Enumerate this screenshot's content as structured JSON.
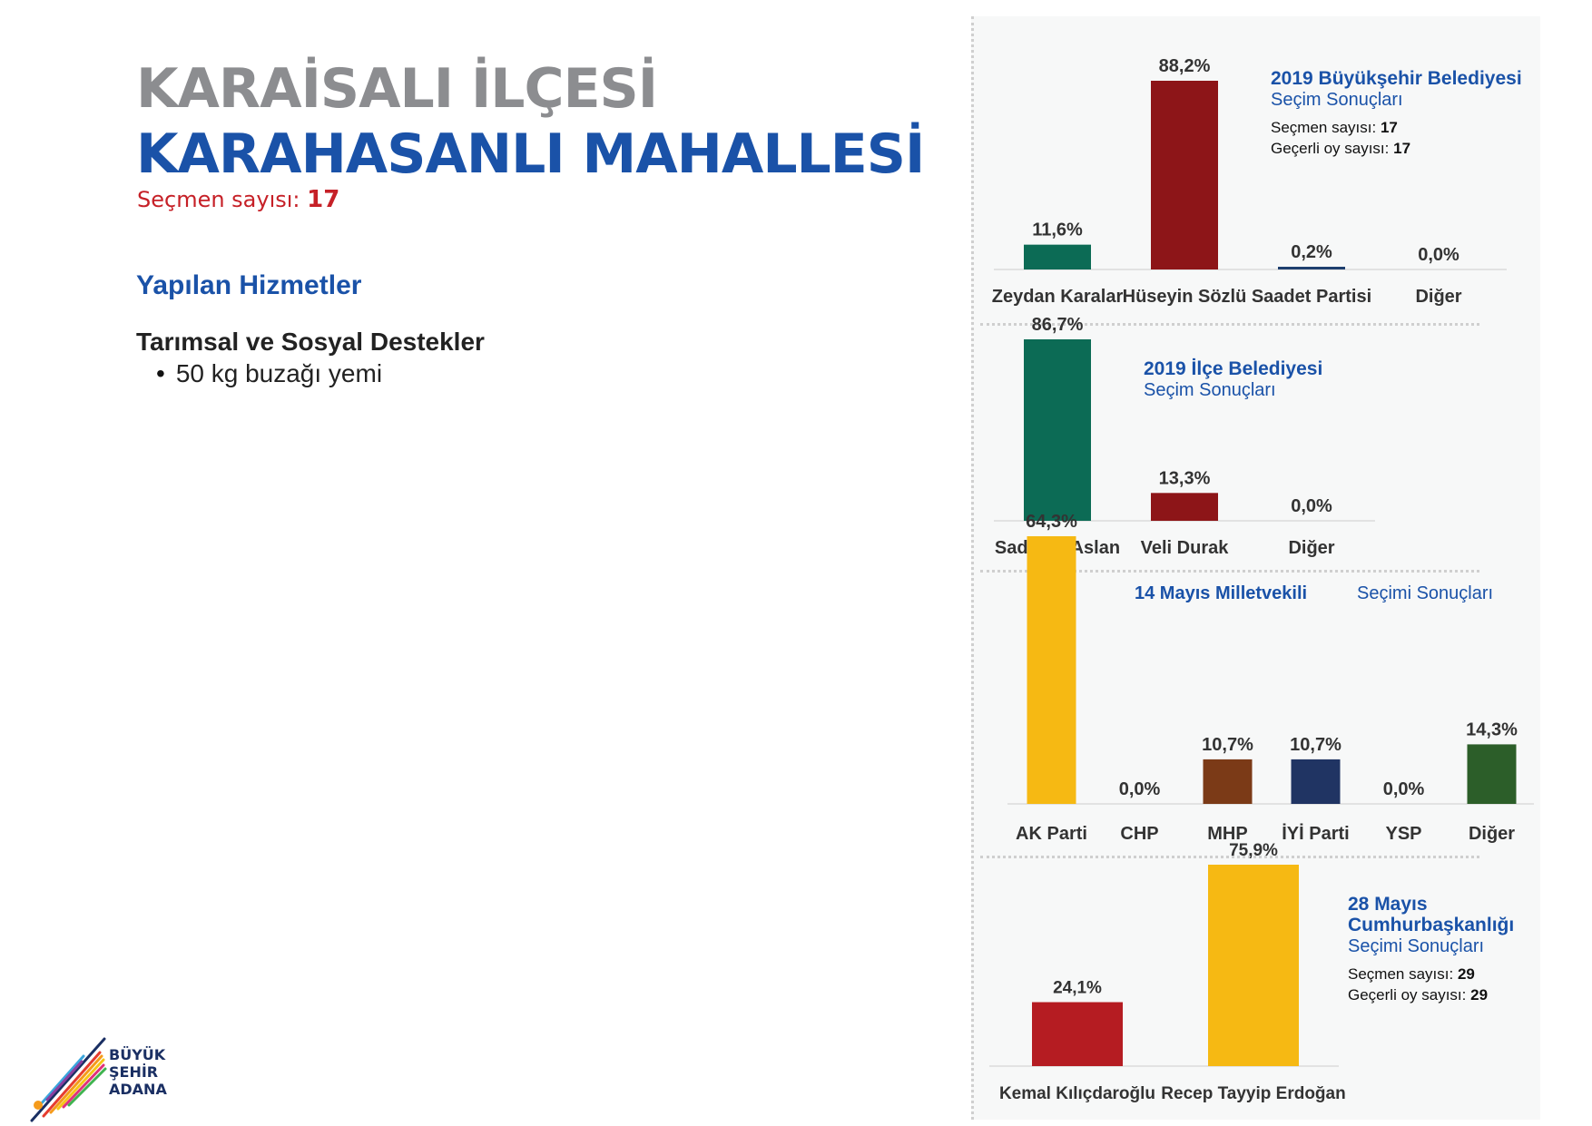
{
  "header": {
    "district": "KARAİSALI İLÇESİ",
    "neighborhood": "KARAHASANLI MAHALLESİ",
    "voters_label": "Seçmen sayısı:",
    "voters_value": "17"
  },
  "services": {
    "heading": "Yapılan Hizmetler",
    "category": "Tarımsal ve Sosyal Destekler",
    "items": [
      "50 kg buzağı yemi"
    ]
  },
  "logo": {
    "line1": "BÜYÜK",
    "line2": "ŞEHİR",
    "line3": "ADANA"
  },
  "colors": {
    "green": "#0c6b55",
    "red": "#8d1518",
    "navy": "#1e3f6e",
    "yellow": "#f6b913",
    "brown": "#7b3a17",
    "dark_navy": "#203463",
    "dark_green": "#2c5e29",
    "red2": "#b51c22",
    "accent_blue": "#1a52a8",
    "accent_red": "#c62027"
  },
  "chart_data": [
    {
      "type": "bar",
      "title": "2019 Büyükşehir Belediyesi",
      "subtitle": "Seçim Sonuçları",
      "meta": [
        {
          "label": "Seçmen sayısı:",
          "value": "17"
        },
        {
          "label": "Geçerli oy sayısı:",
          "value": "17"
        }
      ],
      "categories": [
        "Zeydan Karalar",
        "Hüseyin Sözlü",
        "Saadet Partisi",
        "Diğer"
      ],
      "values": [
        11.6,
        88.2,
        0.2,
        0.0
      ],
      "labels": [
        "11,6%",
        "88,2%",
        "0,2%",
        "0,0%"
      ],
      "colors": [
        "#0c6b55",
        "#8d1518",
        "#1e3f6e",
        "#777777"
      ],
      "ylim": [
        0,
        100
      ]
    },
    {
      "type": "bar",
      "title": "2019 İlçe Belediyesi",
      "subtitle": "Seçim Sonuçları",
      "meta": [],
      "categories": [
        "Sadettin Aslan",
        "Veli Durak",
        "Diğer"
      ],
      "values": [
        86.7,
        13.3,
        0.0
      ],
      "labels": [
        "86,7%",
        "13,3%",
        "0,0%"
      ],
      "colors": [
        "#0c6b55",
        "#8d1518",
        "#777777"
      ],
      "ylim": [
        0,
        100
      ]
    },
    {
      "type": "bar",
      "title": "14 Mayıs Milletvekili",
      "subtitle": "Seçimi Sonuçları",
      "meta": [],
      "categories": [
        "AK Parti",
        "CHP",
        "MHP",
        "İYİ Parti",
        "YSP",
        "Diğer"
      ],
      "values": [
        64.3,
        0.0,
        10.7,
        10.7,
        0.0,
        14.3
      ],
      "labels": [
        "64,3%",
        "0,0%",
        "10,7%",
        "10,7%",
        "0,0%",
        "14,3%"
      ],
      "colors": [
        "#f6b913",
        "#c62027",
        "#7b3a17",
        "#203463",
        "#6a2c7a",
        "#2c5e29"
      ],
      "ylim": [
        0,
        100
      ]
    },
    {
      "type": "bar",
      "title": "28 Mayıs Cumhurbaşkanlığı",
      "subtitle": "Seçimi Sonuçları",
      "meta": [
        {
          "label": "Seçmen sayısı:",
          "value": "29"
        },
        {
          "label": "Geçerli oy sayısı:",
          "value": "29"
        }
      ],
      "categories": [
        "Kemal Kılıçdaroğlu",
        "Recep Tayyip Erdoğan"
      ],
      "values": [
        24.1,
        75.9
      ],
      "labels": [
        "24,1%",
        "75,9%"
      ],
      "colors": [
        "#b51c22",
        "#f6b913"
      ],
      "ylim": [
        0,
        100
      ]
    }
  ]
}
